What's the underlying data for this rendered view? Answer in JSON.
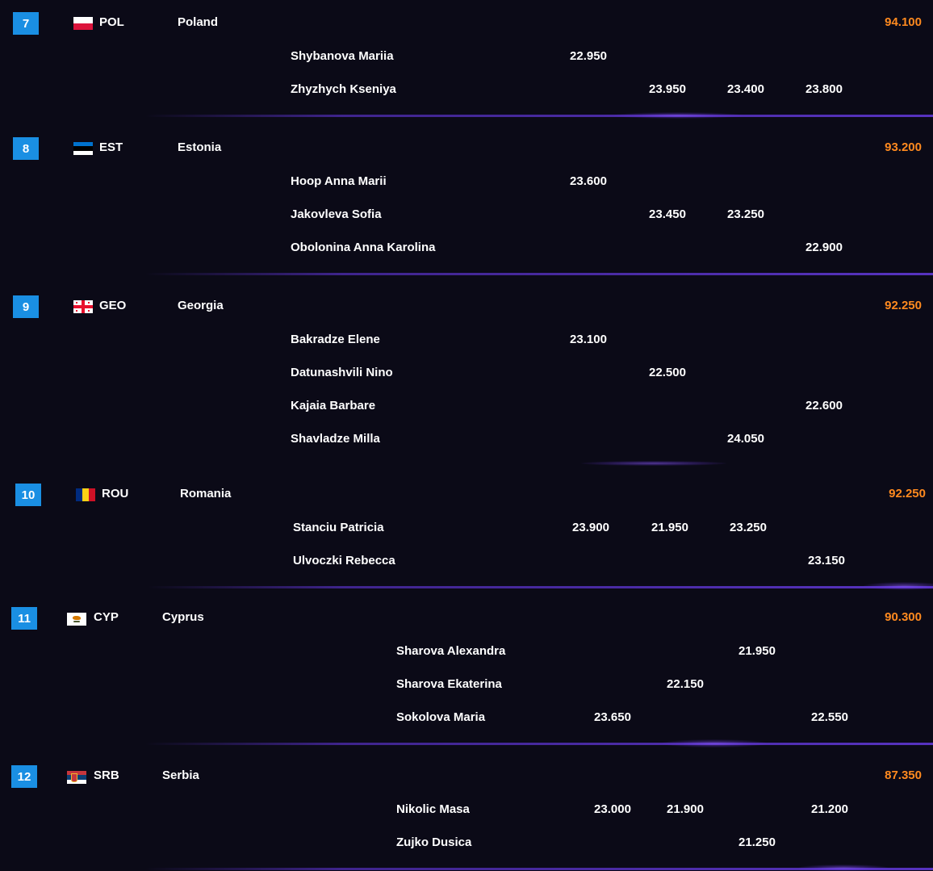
{
  "teams": [
    {
      "rank": "7",
      "code": "POL",
      "country": "Poland",
      "total": "94.100",
      "flag": "flag-poland-icon",
      "athletes": [
        {
          "name": "Shybanova Mariia",
          "scores": [
            "22.950",
            "",
            "",
            ""
          ]
        },
        {
          "name": "Zhyzhych Kseniya",
          "scores": [
            "",
            "23.950",
            "23.400",
            "23.800"
          ]
        }
      ]
    },
    {
      "rank": "8",
      "code": "EST",
      "country": "Estonia",
      "total": "93.200",
      "flag": "flag-estonia-icon",
      "athletes": [
        {
          "name": "Hoop Anna Marii",
          "scores": [
            "23.600",
            "",
            "",
            ""
          ]
        },
        {
          "name": "Jakovleva Sofia",
          "scores": [
            "",
            "23.450",
            "23.250",
            ""
          ]
        },
        {
          "name": "Obolonina Anna Karolina",
          "scores": [
            "",
            "",
            "",
            "22.900"
          ]
        }
      ]
    },
    {
      "rank": "9",
      "code": "GEO",
      "country": "Georgia",
      "total": "92.250",
      "flag": "flag-georgia-icon",
      "athletes": [
        {
          "name": "Bakradze Elene",
          "scores": [
            "23.100",
            "",
            "",
            ""
          ]
        },
        {
          "name": "Datunashvili Nino",
          "scores": [
            "",
            "22.500",
            "",
            ""
          ]
        },
        {
          "name": "Kajaia Barbare",
          "scores": [
            "",
            "",
            "",
            "22.600"
          ]
        },
        {
          "name": "Shavladze Milla",
          "scores": [
            "",
            "",
            "24.050",
            ""
          ]
        }
      ]
    },
    {
      "rank": "10",
      "code": "ROU",
      "country": "Romania",
      "total": "92.250",
      "flag": "flag-romania-icon",
      "athletes": [
        {
          "name": "Stanciu Patricia",
          "scores": [
            "23.900",
            "21.950",
            "23.250",
            ""
          ]
        },
        {
          "name": "Ulvoczki Rebecca",
          "scores": [
            "",
            "",
            "",
            "23.150"
          ]
        }
      ]
    },
    {
      "rank": "11",
      "code": "CYP",
      "country": "Cyprus",
      "total": "90.300",
      "flag": "flag-cyprus-icon",
      "athletes": [
        {
          "name": "Sharova Alexandra",
          "scores": [
            "",
            "",
            "21.950",
            ""
          ]
        },
        {
          "name": "Sharova Ekaterina",
          "scores": [
            "",
            "22.150",
            "",
            ""
          ]
        },
        {
          "name": "Sokolova Maria",
          "scores": [
            "23.650",
            "",
            "",
            "22.550"
          ]
        }
      ]
    },
    {
      "rank": "12",
      "code": "SRB",
      "country": "Serbia",
      "total": "87.350",
      "flag": "flag-serbia-icon",
      "athletes": [
        {
          "name": "Nikolic Masa",
          "scores": [
            "23.000",
            "21.900",
            "",
            "21.200"
          ]
        },
        {
          "name": "Zujko Dusica",
          "scores": [
            "",
            "",
            "21.250",
            ""
          ]
        }
      ]
    }
  ]
}
